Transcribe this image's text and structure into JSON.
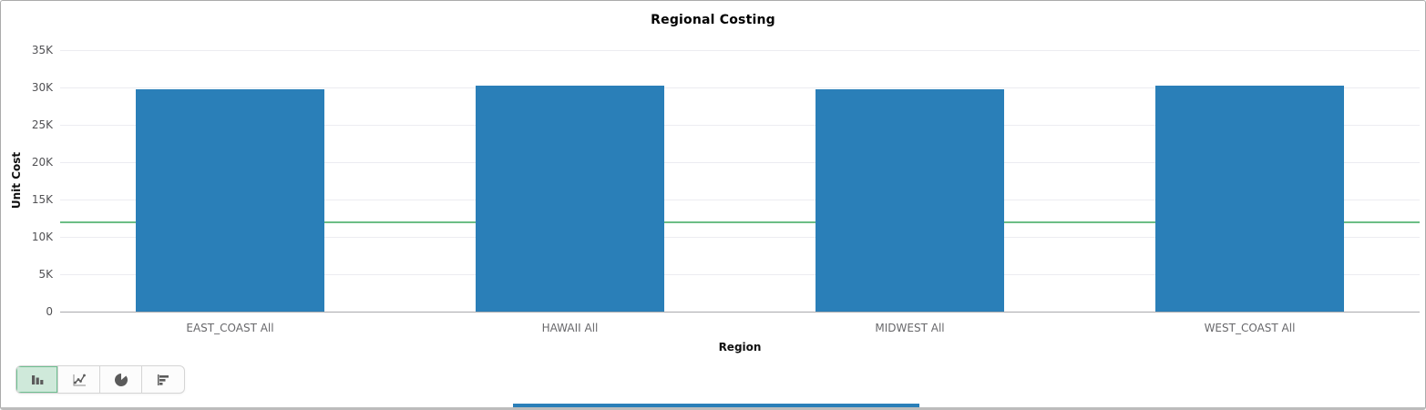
{
  "chart_data": {
    "type": "bar",
    "title": "Regional Costing",
    "xlabel": "Region",
    "ylabel": "Unit Cost",
    "categories": [
      "EAST_COAST All",
      "HAWAII All",
      "MIDWEST All",
      "WEST_COAST All"
    ],
    "values": [
      29800,
      30300,
      29700,
      30200
    ],
    "ylim": [
      0,
      35000
    ],
    "ytick_step": 5000,
    "ytick_values": [
      0,
      5000,
      10000,
      15000,
      20000,
      25000,
      30000,
      35000
    ],
    "ytick_labels": [
      "0",
      "5K",
      "10K",
      "15K",
      "20K",
      "25K",
      "30K",
      "35K"
    ],
    "reference_line": {
      "value": 12100,
      "color": "#6cbe86"
    },
    "bar_color": "#2a7fb8",
    "grid": true,
    "legend": "none"
  },
  "toolbar": {
    "buttons": [
      {
        "name": "bar-chart",
        "selected": true
      },
      {
        "name": "line-chart",
        "selected": false
      },
      {
        "name": "pie-chart",
        "selected": false
      },
      {
        "name": "horizontal-bar-chart",
        "selected": false
      }
    ],
    "selected_bg": "#cfe9da",
    "selected_border": "#6ebf90"
  },
  "colors": {
    "bar": "#2a7fb8",
    "reference_line": "#6cbe86",
    "grid_line": "#ececf1",
    "axis_line": "#a9a9ad",
    "card_border": "#ababab"
  }
}
